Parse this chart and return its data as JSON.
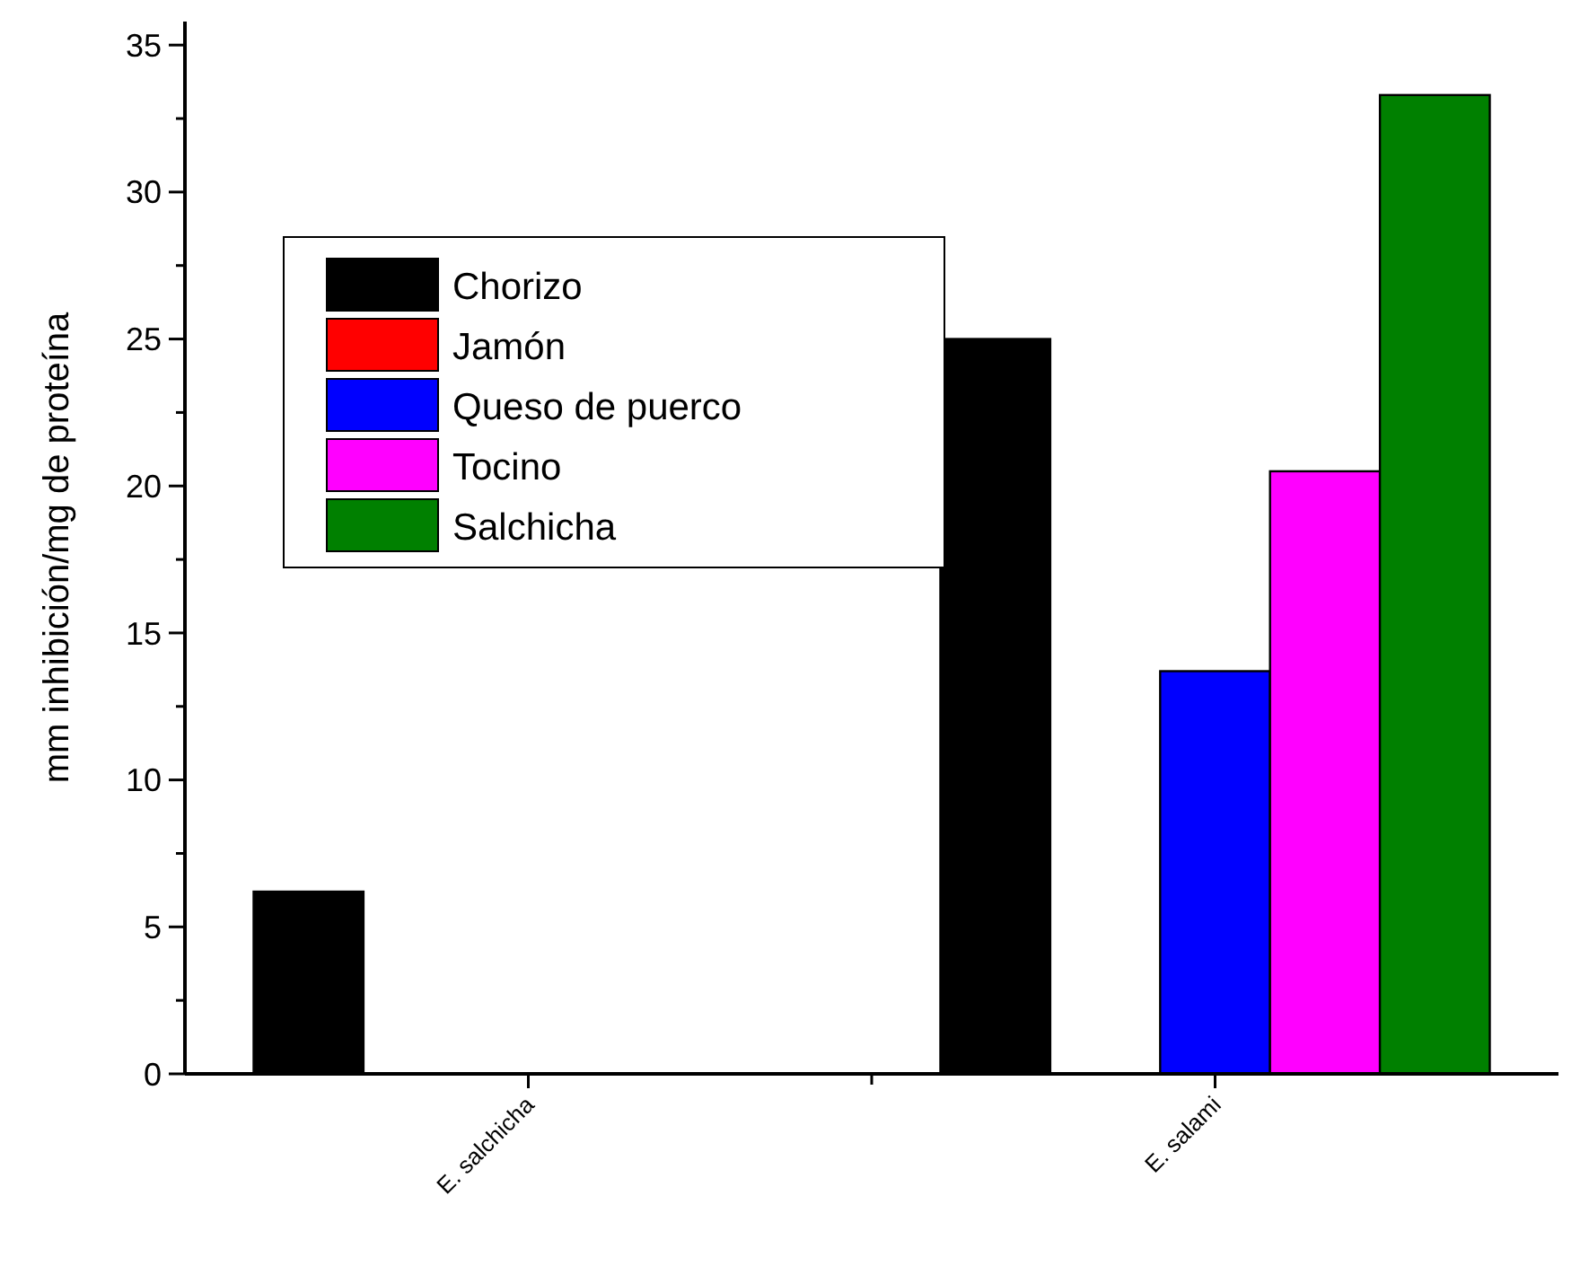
{
  "chart_data": {
    "type": "bar",
    "ylabel": "mm inhibición/mg de proteína",
    "categories": [
      "E. salchicha",
      "E. salami"
    ],
    "series": [
      {
        "name": "Chorizo",
        "color": "#000000",
        "values": [
          6.2,
          25.0
        ]
      },
      {
        "name": "Jamón",
        "color": "#ff0000",
        "values": [
          0,
          0
        ]
      },
      {
        "name": "Queso de puerco",
        "color": "#0000ff",
        "values": [
          0,
          13.7
        ]
      },
      {
        "name": "Tocino",
        "color": "#ff00ff",
        "values": [
          0,
          20.5
        ]
      },
      {
        "name": "Salchicha",
        "color": "#008000",
        "values": [
          0,
          33.3
        ]
      }
    ],
    "ylim": [
      0,
      35.8
    ],
    "yticks": [
      0,
      {
        "value": 2.5,
        "label": null
      },
      5,
      {
        "value": 7.5,
        "label": null
      },
      10,
      {
        "value": 12.5,
        "label": null
      },
      15,
      {
        "value": 17.5,
        "label": null
      },
      20,
      {
        "value": 22.5,
        "label": null
      },
      25,
      {
        "value": 27.5,
        "label": null
      },
      30,
      {
        "value": 32.5,
        "label": null
      },
      35
    ],
    "grid": false,
    "legend": "top left"
  }
}
